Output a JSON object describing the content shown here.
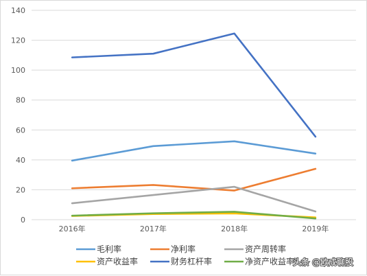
{
  "chart_data": {
    "type": "line",
    "categories": [
      "2016年",
      "2017年",
      "2018年",
      "2019年"
    ],
    "ylim": [
      0,
      140
    ],
    "yticks": [
      0,
      20,
      40,
      60,
      80,
      100,
      120,
      140
    ],
    "grid": true,
    "legend_position": "bottom",
    "series": [
      {
        "name": "毛利率",
        "color": "#5B9BD5",
        "values": [
          39.5,
          49.2,
          52.4,
          44.2
        ]
      },
      {
        "name": "净利率",
        "color": "#ED7D31",
        "values": [
          21.0,
          23.2,
          19.5,
          34.0
        ]
      },
      {
        "name": "资产周转率",
        "color": "#A5A5A5",
        "values": [
          11.0,
          16.5,
          22.0,
          5.5
        ]
      },
      {
        "name": "资产收益率",
        "color": "#FFC000",
        "values": [
          2.5,
          3.8,
          4.2,
          1.5
        ]
      },
      {
        "name": "财务杠杆率",
        "color": "#4472C4",
        "values": [
          108.5,
          111.0,
          124.5,
          55.5
        ]
      },
      {
        "name": "净资产收益率",
        "color": "#70AD47",
        "values": [
          2.7,
          4.3,
          5.3,
          0.8
        ]
      }
    ]
  },
  "watermark": "头条 @欧成聊股"
}
